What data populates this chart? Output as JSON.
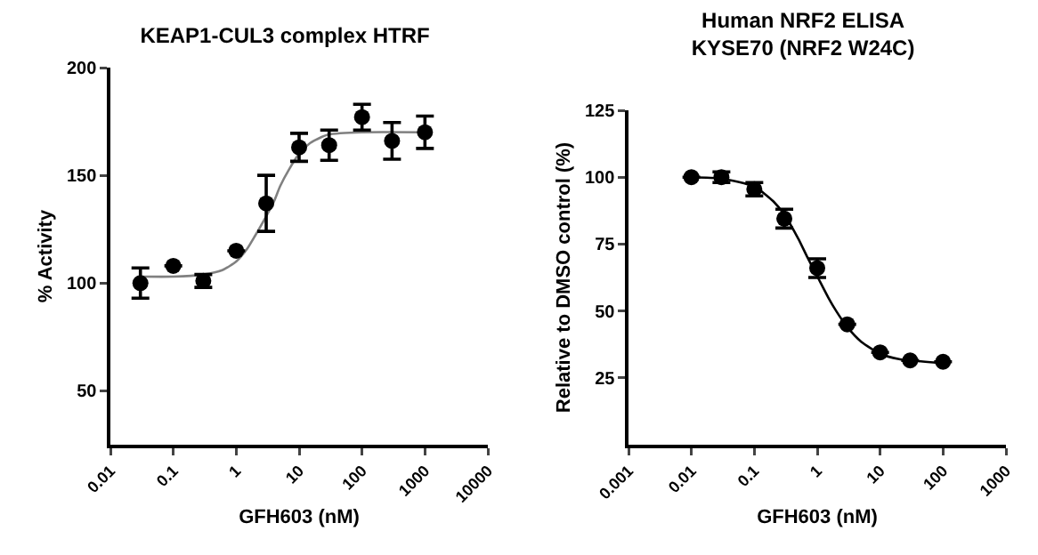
{
  "chart_data": [
    {
      "type": "scatter",
      "title": "KEAP1-CUL3 complex HTRF",
      "xlabel": "GFH603 (nM)",
      "ylabel": "% Activity",
      "log": "x",
      "grid": false,
      "xlim": [
        0.01,
        10000
      ],
      "xticks": [
        0.01,
        0.1,
        1,
        10,
        100,
        1000,
        10000
      ],
      "ylim": [
        25,
        200
      ],
      "yticks": [
        50,
        100,
        150,
        200
      ],
      "series": [
        {
          "color": "#000000",
          "marker": "circle",
          "x": [
            0.03,
            0.1,
            0.3,
            1,
            3,
            10,
            30,
            100,
            300,
            1000
          ],
          "values": [
            100,
            108,
            101,
            115,
            137,
            163,
            164,
            177,
            166,
            170
          ],
          "errors": [
            7,
            null,
            3,
            null,
            13,
            6.5,
            7,
            6,
            8.5,
            7.5
          ]
        },
        {
          "type": "line",
          "marker": "none",
          "color": "#808080",
          "x": [
            0.03,
            0.1,
            0.3,
            0.6,
            1,
            1.5,
            2,
            3,
            4,
            5,
            7,
            10,
            15,
            20,
            30,
            100,
            1000
          ],
          "values": [
            103,
            103,
            104,
            106,
            110,
            116,
            122,
            131,
            138,
            145,
            153,
            160,
            165,
            167,
            169,
            170,
            170
          ]
        }
      ]
    },
    {
      "type": "scatter",
      "title": "Human NRF2 ELISA\nKYSE70 (NRF2 W24C)",
      "xlabel": "GFH603 (nM)",
      "ylabel": "Relative to DMSO control (%)",
      "log": "x",
      "grid": false,
      "xlim": [
        0.001,
        1000
      ],
      "xticks": [
        0.001,
        0.01,
        0.1,
        1,
        10,
        100,
        1000
      ],
      "ylim": [
        0,
        125
      ],
      "yticks": [
        25,
        50,
        75,
        100,
        125
      ],
      "series": [
        {
          "color": "#000000",
          "marker": "circle",
          "x": [
            0.01,
            0.03,
            0.1,
            0.3,
            1,
            3,
            10,
            30,
            100
          ],
          "values": [
            100,
            100,
            95.5,
            84.5,
            66,
            45,
            34.5,
            31.5,
            31
          ],
          "errors": [
            null,
            2,
            2.5,
            3.5,
            3.5,
            null,
            null,
            null,
            null
          ]
        },
        {
          "type": "line",
          "marker": "none",
          "color": "#000000",
          "x": [
            0.01,
            0.03,
            0.1,
            0.2,
            0.3,
            0.5,
            0.7,
            1,
            1.5,
            2,
            3,
            5,
            10,
            20,
            30,
            100
          ],
          "values": [
            100,
            99.5,
            96.5,
            91,
            86,
            77,
            70,
            63,
            55,
            50,
            44,
            38.5,
            34,
            32,
            31.5,
            30.5
          ]
        }
      ]
    }
  ]
}
